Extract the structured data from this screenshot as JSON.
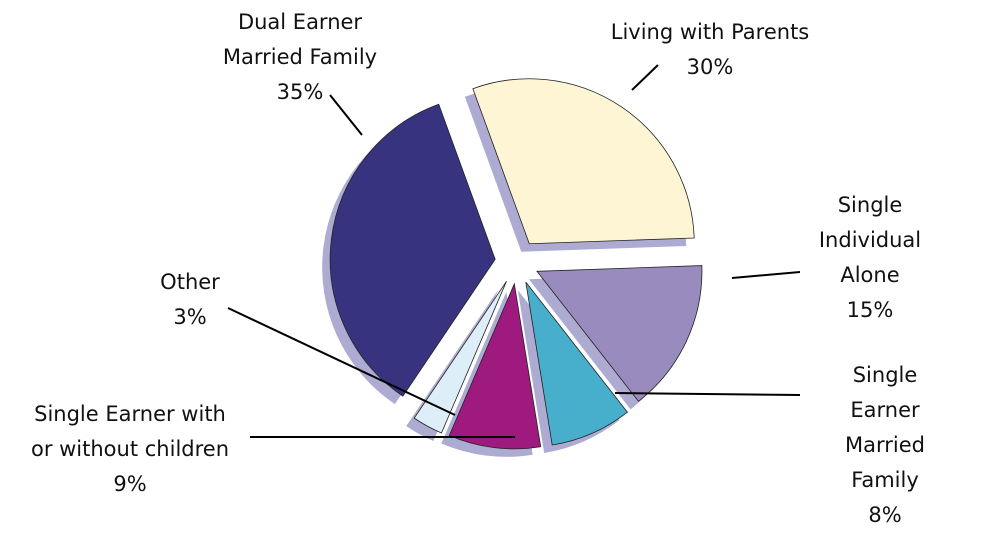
{
  "chart_data": {
    "type": "pie",
    "categories": [
      "Living with Parents",
      "Single Individual Alone",
      "Single Earner Married Family",
      "Single Earner with or without children",
      "Other",
      "Dual Earner Married Family"
    ],
    "values": [
      30,
      15,
      8,
      9,
      3,
      35
    ],
    "value_labels": [
      "30%",
      "15%",
      "8%",
      "9%",
      "3%",
      "35%"
    ],
    "colors": [
      "#fdf5d3",
      "#9a8bbf",
      "#47aecb",
      "#9e1a7e",
      "#ddeef8",
      "#37337f"
    ]
  }
}
